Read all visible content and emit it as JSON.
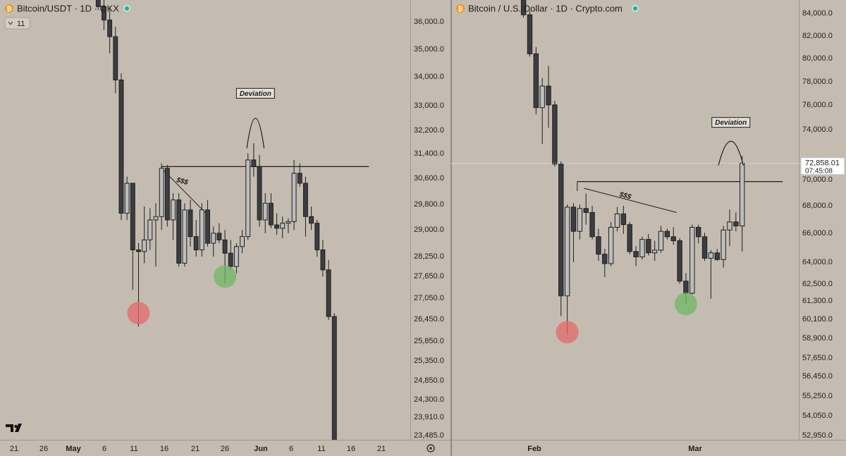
{
  "colors": {
    "background": "#c4bcb0",
    "candle_up": "#bdbdbd",
    "candle_down": "#3c3d42",
    "candle_outline": "#1e1e1e",
    "line": "#1e1e1e",
    "swing_low_marker": "#e46b6b",
    "higher_low_marker": "#6fb864",
    "status_dot": "#22ab94",
    "btc_icon": "#f7931a"
  },
  "chart_data": [
    {
      "type": "candlestick",
      "symbol_icon": "bitcoin-icon",
      "title": "Bitcoin/USDT · 1D · OKX",
      "interval_badge": "11",
      "x_tick_labels": [
        "21",
        "26",
        "May",
        "6",
        "11",
        "16",
        "21",
        "26",
        "Jun",
        "6",
        "11",
        "16",
        "21"
      ],
      "y_tick_labels": [
        "36,000.0",
        "35,000.0",
        "34,000.0",
        "33,000.0",
        "32,200.0",
        "31,400.0",
        "30,600.0",
        "29,800.0",
        "29,000.0",
        "28,250.0",
        "27,650.0",
        "27,050.0",
        "26,450.0",
        "25,850.0",
        "25,350.0",
        "24,850.0",
        "24,300.0",
        "23,910.0",
        "23,485.0"
      ],
      "ylim": [
        23300,
        36500
      ],
      "candles": [
        {
          "o": 36900,
          "h": 37300,
          "l": 36200,
          "c": 36300
        },
        {
          "o": 36300,
          "h": 36700,
          "l": 35600,
          "c": 35900
        },
        {
          "o": 35900,
          "h": 36300,
          "l": 34900,
          "c": 35400
        },
        {
          "o": 35400,
          "h": 35700,
          "l": 33700,
          "c": 34100
        },
        {
          "o": 34100,
          "h": 34300,
          "l": 29900,
          "c": 30100
        },
        {
          "o": 30100,
          "h": 31200,
          "l": 29900,
          "c": 31000
        },
        {
          "o": 31000,
          "h": 31000,
          "l": 27800,
          "c": 29000
        },
        {
          "o": 29000,
          "h": 29200,
          "l": 26700,
          "c": 28950
        },
        {
          "o": 28950,
          "h": 30300,
          "l": 28600,
          "c": 29300
        },
        {
          "o": 29300,
          "h": 30250,
          "l": 29000,
          "c": 29900
        },
        {
          "o": 29900,
          "h": 30400,
          "l": 28500,
          "c": 30000
        },
        {
          "o": 30000,
          "h": 31600,
          "l": 29600,
          "c": 31450
        },
        {
          "o": 31450,
          "h": 31550,
          "l": 29700,
          "c": 29900
        },
        {
          "o": 29900,
          "h": 30700,
          "l": 29300,
          "c": 30500
        },
        {
          "o": 30500,
          "h": 30700,
          "l": 28500,
          "c": 28600
        },
        {
          "o": 28600,
          "h": 30400,
          "l": 28500,
          "c": 30200
        },
        {
          "o": 30200,
          "h": 30500,
          "l": 29100,
          "c": 29400
        },
        {
          "o": 29400,
          "h": 29900,
          "l": 28800,
          "c": 29000
        },
        {
          "o": 29000,
          "h": 30400,
          "l": 28800,
          "c": 30200
        },
        {
          "o": 30200,
          "h": 30500,
          "l": 29100,
          "c": 29200
        },
        {
          "o": 29200,
          "h": 29700,
          "l": 28800,
          "c": 29500
        },
        {
          "o": 29500,
          "h": 29800,
          "l": 29200,
          "c": 29300
        },
        {
          "o": 29300,
          "h": 29600,
          "l": 28000,
          "c": 28900
        },
        {
          "o": 28900,
          "h": 29300,
          "l": 28400,
          "c": 28500
        },
        {
          "o": 28500,
          "h": 29200,
          "l": 28300,
          "c": 29100
        },
        {
          "o": 29100,
          "h": 29600,
          "l": 28900,
          "c": 29400
        },
        {
          "o": 29400,
          "h": 31900,
          "l": 29300,
          "c": 31700
        },
        {
          "o": 31700,
          "h": 32200,
          "l": 31200,
          "c": 31500
        },
        {
          "o": 31500,
          "h": 31850,
          "l": 29700,
          "c": 29900
        },
        {
          "o": 29900,
          "h": 30700,
          "l": 29500,
          "c": 30400
        },
        {
          "o": 30400,
          "h": 30700,
          "l": 29650,
          "c": 29750
        },
        {
          "o": 29750,
          "h": 30100,
          "l": 29450,
          "c": 29650
        },
        {
          "o": 29650,
          "h": 30000,
          "l": 29350,
          "c": 29800
        },
        {
          "o": 29800,
          "h": 29950,
          "l": 29500,
          "c": 29850
        },
        {
          "o": 29850,
          "h": 31700,
          "l": 29600,
          "c": 31300
        },
        {
          "o": 31300,
          "h": 31600,
          "l": 30900,
          "c": 31000
        },
        {
          "o": 31000,
          "h": 31200,
          "l": 29400,
          "c": 30000
        },
        {
          "o": 30000,
          "h": 30300,
          "l": 29600,
          "c": 29800
        },
        {
          "o": 29800,
          "h": 29900,
          "l": 28800,
          "c": 29000
        },
        {
          "o": 29000,
          "h": 29300,
          "l": 28200,
          "c": 28400
        },
        {
          "o": 28400,
          "h": 28700,
          "l": 26900,
          "c": 27000
        },
        {
          "o": 27000,
          "h": 27100,
          "l": 22800,
          "c": 22900
        }
      ],
      "lines": [
        {
          "kind": "horizontal",
          "x1": 11,
          "x2": 47,
          "y": 31500
        },
        {
          "kind": "trendline",
          "x1": 11,
          "y1": 31450,
          "x2": 18.7,
          "y2": 30100
        },
        {
          "kind": "vertical",
          "x": 11,
          "y1": 31250,
          "y2": 31500
        }
      ],
      "arc": {
        "x1": 25.8,
        "x2": 28.8,
        "base": 32050,
        "top": 32950
      },
      "annotations": [
        {
          "text": "Deviation",
          "x": 27.3,
          "y": 33700,
          "boxed": true
        },
        {
          "text": "$$$",
          "x": 14.5,
          "y": 31000,
          "boxed": false
        }
      ],
      "markers": [
        {
          "x": 7,
          "y": 27100,
          "color": "swing_low_marker"
        },
        {
          "x": 22,
          "y": 28200,
          "color": "higher_low_marker"
        }
      ],
      "logo": "tradingview-logo",
      "settings_icon": "gear-icon"
    },
    {
      "type": "candlestick",
      "symbol_icon": "bitcoin-icon",
      "title": "Bitcoin / U.S. Dollar · 1D · Crypto.com",
      "x_tick_labels": [
        "Feb",
        "Mar"
      ],
      "y_tick_labels": [
        "84,000.0",
        "82,000.0",
        "80,000.0",
        "78,000.0",
        "76,000.0",
        "74,000.0",
        "70,000.0",
        "68,000.0",
        "66,000.0",
        "64,000.0",
        "62,500.0",
        "61,300.0",
        "60,100.0",
        "58,900.0",
        "57,650.0",
        "56,450.0",
        "55,250.0",
        "54,050.0",
        "52,950.0"
      ],
      "ylim": [
        52300,
        85000
      ],
      "price_badge": {
        "price": "72,858.01",
        "countdown": "07:45:08",
        "value": 72858
      },
      "candles": [
        {
          "o": 85500,
          "h": 86000,
          "l": 83700,
          "c": 83900
        },
        {
          "o": 83900,
          "h": 84200,
          "l": 80800,
          "c": 81000
        },
        {
          "o": 81000,
          "h": 81500,
          "l": 76500,
          "c": 77000
        },
        {
          "o": 77000,
          "h": 79200,
          "l": 74300,
          "c": 78600
        },
        {
          "o": 78600,
          "h": 80100,
          "l": 75500,
          "c": 77200
        },
        {
          "o": 77200,
          "h": 77500,
          "l": 72600,
          "c": 72800
        },
        {
          "o": 72800,
          "h": 73000,
          "l": 61500,
          "c": 63000
        },
        {
          "o": 63000,
          "h": 69800,
          "l": 60100,
          "c": 69600
        },
        {
          "o": 69600,
          "h": 69900,
          "l": 65500,
          "c": 67800
        },
        {
          "o": 67800,
          "h": 69800,
          "l": 67200,
          "c": 69500
        },
        {
          "o": 69500,
          "h": 70600,
          "l": 68300,
          "c": 69200
        },
        {
          "o": 69200,
          "h": 69700,
          "l": 67200,
          "c": 67400
        },
        {
          "o": 67400,
          "h": 68000,
          "l": 65600,
          "c": 66100
        },
        {
          "o": 66100,
          "h": 66500,
          "l": 64400,
          "c": 65400
        },
        {
          "o": 65400,
          "h": 68500,
          "l": 65200,
          "c": 68100
        },
        {
          "o": 68100,
          "h": 69600,
          "l": 67800,
          "c": 69100
        },
        {
          "o": 69100,
          "h": 69700,
          "l": 67600,
          "c": 68300
        },
        {
          "o": 68300,
          "h": 68500,
          "l": 66100,
          "c": 66300
        },
        {
          "o": 66300,
          "h": 66700,
          "l": 65200,
          "c": 65900
        },
        {
          "o": 65900,
          "h": 67400,
          "l": 65700,
          "c": 67200
        },
        {
          "o": 67200,
          "h": 67600,
          "l": 66000,
          "c": 66200
        },
        {
          "o": 66200,
          "h": 67100,
          "l": 65600,
          "c": 66400
        },
        {
          "o": 66400,
          "h": 68200,
          "l": 66200,
          "c": 67800
        },
        {
          "o": 67800,
          "h": 68000,
          "l": 67200,
          "c": 67400
        },
        {
          "o": 67400,
          "h": 68100,
          "l": 66800,
          "c": 67100
        },
        {
          "o": 67100,
          "h": 67300,
          "l": 63900,
          "c": 64100
        },
        {
          "o": 64100,
          "h": 64700,
          "l": 62400,
          "c": 63200
        },
        {
          "o": 63200,
          "h": 68300,
          "l": 63100,
          "c": 68100
        },
        {
          "o": 68100,
          "h": 68300,
          "l": 66900,
          "c": 67400
        },
        {
          "o": 67400,
          "h": 67700,
          "l": 65600,
          "c": 65800
        },
        {
          "o": 65800,
          "h": 66400,
          "l": 62800,
          "c": 66200
        },
        {
          "o": 66200,
          "h": 66500,
          "l": 65600,
          "c": 65700
        },
        {
          "o": 65700,
          "h": 68200,
          "l": 65100,
          "c": 67900
        },
        {
          "o": 67900,
          "h": 69400,
          "l": 66700,
          "c": 68500
        },
        {
          "o": 68500,
          "h": 69200,
          "l": 67800,
          "c": 68200
        },
        {
          "o": 68200,
          "h": 73400,
          "l": 66300,
          "c": 72858
        }
      ],
      "lines": [
        {
          "kind": "horizontal",
          "x1": 8.6,
          "x2": 41.5,
          "y": 71500
        },
        {
          "kind": "trendline",
          "x1": 9.7,
          "y1": 71000,
          "x2": 24.5,
          "y2": 69200
        },
        {
          "kind": "vertical",
          "x": 8.6,
          "y1": 70800,
          "y2": 71500
        }
      ],
      "arc": {
        "x1": 31.2,
        "x2": 35.2,
        "base": 72700,
        "top": 74500
      },
      "annotations": [
        {
          "text": "Deviation",
          "x": 33.2,
          "y": 75900,
          "boxed": true
        },
        {
          "text": "$$$",
          "x": 16.2,
          "y": 70300,
          "boxed": false
        }
      ],
      "markers": [
        {
          "x": 7,
          "y": 60300,
          "color": "swing_low_marker"
        },
        {
          "x": 26,
          "y": 62400,
          "color": "higher_low_marker"
        }
      ]
    }
  ]
}
